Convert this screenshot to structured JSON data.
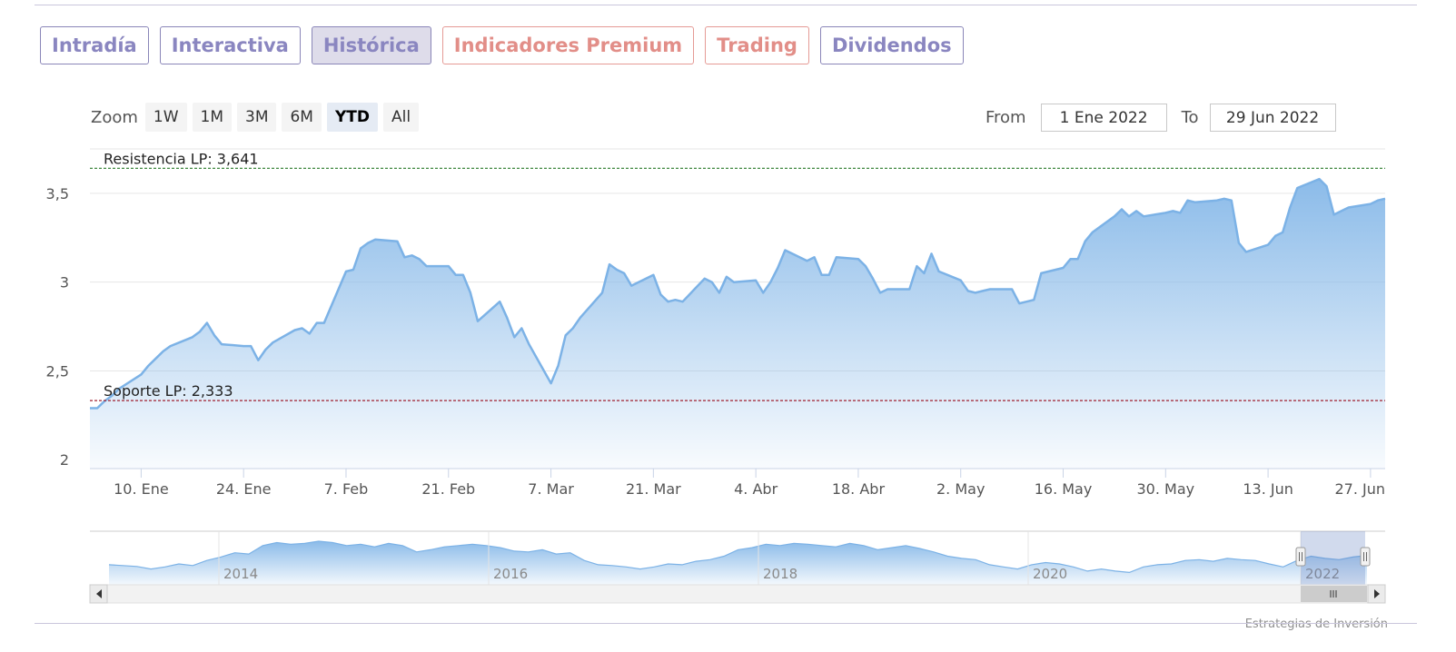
{
  "tabs": [
    {
      "label": "Intradía",
      "style": "normal"
    },
    {
      "label": "Interactiva",
      "style": "normal"
    },
    {
      "label": "Histórica",
      "style": "active"
    },
    {
      "label": "Indicadores Premium",
      "style": "premium"
    },
    {
      "label": "Trading",
      "style": "premium"
    },
    {
      "label": "Dividendos",
      "style": "normal"
    }
  ],
  "zoom": {
    "label": "Zoom",
    "buttons": [
      "1W",
      "1M",
      "3M",
      "6M",
      "YTD",
      "All"
    ],
    "selected": "YTD"
  },
  "range": {
    "from_label": "From",
    "from_value": "1 Ene 2022",
    "to_label": "To",
    "to_value": "29 Jun 2022"
  },
  "credit": "Estrategias de Inversión",
  "colors": {
    "series_line": "#7cb2e6",
    "area_top": "#8bbbe9",
    "resistance_line": "#2a7a2a",
    "support_line": "#a02030",
    "tab_text": "#8a86c0",
    "premium_text": "#e28e88"
  },
  "chart_data": {
    "type": "area",
    "x_tick_labels": [
      "10. Ene",
      "24. Ene",
      "7. Feb",
      "21. Feb",
      "7. Mar",
      "21. Mar",
      "4. Abr",
      "18. Abr",
      "2. May",
      "16. May",
      "30. May",
      "13. Jun",
      "27. Jun"
    ],
    "y_tick_labels": [
      "2",
      "2,5",
      "3",
      "3,5"
    ],
    "ylim": [
      1.95,
      3.75
    ],
    "xlim": [
      "2022-01-03",
      "2022-06-29"
    ],
    "grid": true,
    "plot_lines": [
      {
        "label": "Resistencia LP: 3,641",
        "value": 3.641,
        "style": "dashed"
      },
      {
        "label": "Soporte LP: 2,333",
        "value": 2.333,
        "style": "dashed"
      }
    ],
    "series": [
      {
        "x": [
          "2022-01-03",
          "2022-01-04",
          "2022-01-05",
          "2022-01-06",
          "2022-01-07",
          "2022-01-10",
          "2022-01-11",
          "2022-01-12",
          "2022-01-13",
          "2022-01-14",
          "2022-01-17",
          "2022-01-18",
          "2022-01-19",
          "2022-01-20",
          "2022-01-21",
          "2022-01-24",
          "2022-01-25",
          "2022-01-26",
          "2022-01-27",
          "2022-01-28",
          "2022-01-31",
          "2022-02-01",
          "2022-02-02",
          "2022-02-03",
          "2022-02-04",
          "2022-02-07",
          "2022-02-08",
          "2022-02-09",
          "2022-02-10",
          "2022-02-11",
          "2022-02-14",
          "2022-02-15",
          "2022-02-16",
          "2022-02-17",
          "2022-02-18",
          "2022-02-21",
          "2022-02-22",
          "2022-02-23",
          "2022-02-24",
          "2022-02-25",
          "2022-02-28",
          "2022-03-01",
          "2022-03-02",
          "2022-03-03",
          "2022-03-04",
          "2022-03-07",
          "2022-03-08",
          "2022-03-09",
          "2022-03-10",
          "2022-03-11",
          "2022-03-14",
          "2022-03-15",
          "2022-03-16",
          "2022-03-17",
          "2022-03-18",
          "2022-03-21",
          "2022-03-22",
          "2022-03-23",
          "2022-03-24",
          "2022-03-25",
          "2022-03-28",
          "2022-03-29",
          "2022-03-30",
          "2022-03-31",
          "2022-04-01",
          "2022-04-04",
          "2022-04-05",
          "2022-04-06",
          "2022-04-07",
          "2022-04-08",
          "2022-04-11",
          "2022-04-12",
          "2022-04-13",
          "2022-04-14",
          "2022-04-15",
          "2022-04-18",
          "2022-04-19",
          "2022-04-20",
          "2022-04-21",
          "2022-04-22",
          "2022-04-25",
          "2022-04-26",
          "2022-04-27",
          "2022-04-28",
          "2022-04-29",
          "2022-05-02",
          "2022-05-03",
          "2022-05-04",
          "2022-05-05",
          "2022-05-06",
          "2022-05-09",
          "2022-05-10",
          "2022-05-11",
          "2022-05-12",
          "2022-05-13",
          "2022-05-16",
          "2022-05-17",
          "2022-05-18",
          "2022-05-19",
          "2022-05-20",
          "2022-05-23",
          "2022-05-24",
          "2022-05-25",
          "2022-05-26",
          "2022-05-27",
          "2022-05-30",
          "2022-05-31",
          "2022-06-01",
          "2022-06-02",
          "2022-06-03",
          "2022-06-06",
          "2022-06-07",
          "2022-06-08",
          "2022-06-09",
          "2022-06-10",
          "2022-06-13",
          "2022-06-14",
          "2022-06-15",
          "2022-06-16",
          "2022-06-17",
          "2022-06-20",
          "2022-06-21",
          "2022-06-22",
          "2022-06-23",
          "2022-06-24",
          "2022-06-27",
          "2022-06-28",
          "2022-06-29"
        ],
        "y": [
          2.29,
          2.29,
          2.33,
          2.36,
          2.4,
          2.48,
          2.53,
          2.57,
          2.61,
          2.64,
          2.69,
          2.72,
          2.77,
          2.7,
          2.65,
          2.64,
          2.64,
          2.56,
          2.62,
          2.66,
          2.73,
          2.74,
          2.71,
          2.77,
          2.77,
          3.06,
          3.07,
          3.19,
          3.22,
          3.24,
          3.23,
          3.14,
          3.15,
          3.13,
          3.09,
          3.09,
          3.04,
          3.04,
          2.94,
          2.78,
          2.89,
          2.8,
          2.69,
          2.74,
          2.65,
          2.43,
          2.53,
          2.7,
          2.74,
          2.8,
          2.94,
          3.1,
          3.07,
          3.05,
          2.98,
          3.04,
          2.93,
          2.89,
          2.9,
          2.89,
          3.02,
          3.0,
          2.94,
          3.03,
          3.0,
          3.01,
          2.94,
          3.0,
          3.08,
          3.18,
          3.12,
          3.14,
          3.04,
          3.04,
          3.14,
          3.13,
          3.09,
          3.02,
          2.94,
          2.96,
          2.96,
          3.09,
          3.05,
          3.16,
          3.06,
          3.01,
          2.95,
          2.94,
          2.95,
          2.96,
          2.96,
          2.88,
          2.89,
          2.9,
          3.05,
          3.08,
          3.13,
          3.13,
          3.23,
          3.28,
          3.37,
          3.41,
          3.37,
          3.4,
          3.37,
          3.39,
          3.4,
          3.39,
          3.46,
          3.45,
          3.46,
          3.47,
          3.46,
          3.22,
          3.17,
          3.21,
          3.26,
          3.28,
          3.42,
          3.53,
          3.58,
          3.54,
          3.38,
          3.4,
          3.42,
          3.44,
          3.46,
          3.47
        ]
      }
    ],
    "navigator": {
      "x_tick_labels": [
        "2014",
        "2016",
        "2018",
        "2020",
        "2022"
      ],
      "values": [
        2.6,
        2.58,
        2.56,
        2.5,
        2.55,
        2.62,
        2.58,
        2.7,
        2.78,
        2.88,
        2.85,
        3.05,
        3.12,
        3.08,
        3.1,
        3.15,
        3.12,
        3.05,
        3.08,
        3.02,
        3.1,
        3.05,
        2.9,
        2.95,
        3.02,
        3.05,
        3.08,
        3.05,
        3.0,
        2.92,
        2.9,
        2.95,
        2.85,
        2.88,
        2.7,
        2.6,
        2.58,
        2.55,
        2.5,
        2.55,
        2.62,
        2.6,
        2.68,
        2.72,
        2.8,
        2.95,
        3.0,
        3.08,
        3.05,
        3.1,
        3.08,
        3.05,
        3.02,
        3.1,
        3.05,
        2.95,
        3.0,
        3.05,
        2.98,
        2.9,
        2.8,
        2.75,
        2.72,
        2.6,
        2.55,
        2.5,
        2.6,
        2.65,
        2.62,
        2.55,
        2.45,
        2.5,
        2.45,
        2.42,
        2.55,
        2.6,
        2.62,
        2.7,
        2.72,
        2.68,
        2.75,
        2.72,
        2.7,
        2.62,
        2.55,
        2.7,
        2.8,
        2.75,
        2.72,
        2.78,
        2.82
      ],
      "selected_range": "YTD"
    }
  }
}
